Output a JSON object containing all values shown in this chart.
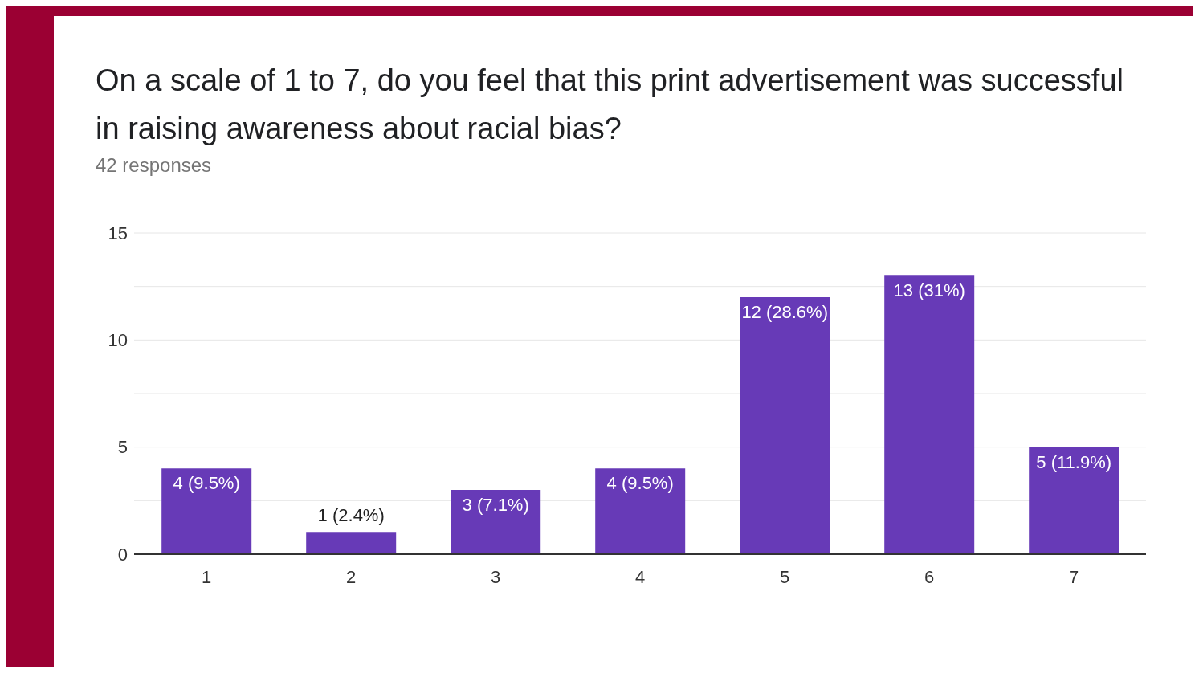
{
  "chart_data": {
    "type": "bar",
    "title": "On a scale of 1 to 7, do you feel that this print advertisement was successful in raising awareness about racial bias?",
    "subtitle": "42 responses",
    "categories": [
      "1",
      "2",
      "3",
      "4",
      "5",
      "6",
      "7"
    ],
    "values": [
      4,
      1,
      3,
      4,
      12,
      13,
      5
    ],
    "value_labels": [
      "4 (9.5%)",
      "1 (2.4%)",
      "3 (7.1%)",
      "4 (9.5%)",
      "12 (28.6%)",
      "13 (31%)",
      "5 (11.9%)"
    ],
    "color": "#673ab7",
    "ylim": [
      0,
      15
    ],
    "yticks": [
      0,
      {
        "value": 2.5,
        "label": null
      },
      5,
      {
        "value": 7.5,
        "label": null
      },
      10,
      {
        "value": 12.5,
        "label": null
      },
      15
    ],
    "grid": "y"
  }
}
